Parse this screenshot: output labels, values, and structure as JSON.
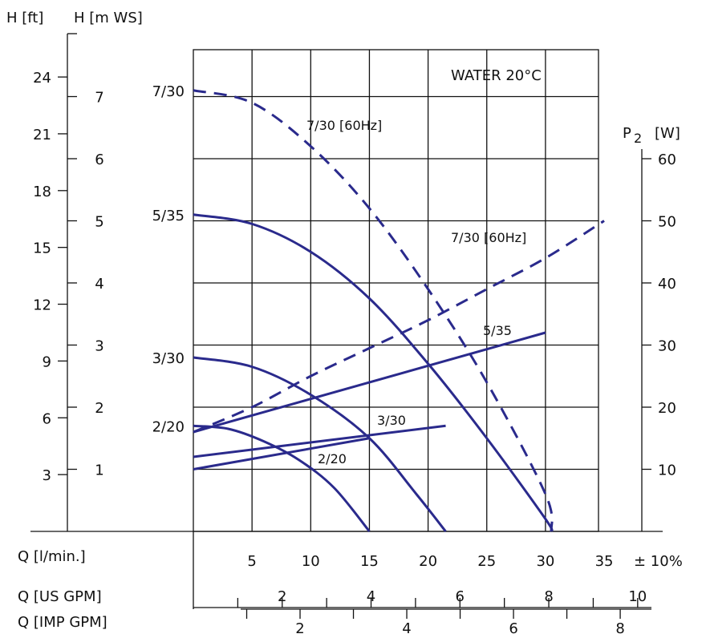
{
  "colors": {
    "curve": "#2a2a8c",
    "grid": "#111111"
  },
  "chart_data": {
    "type": "line",
    "title": "WATER  20°C",
    "axes": {
      "h_ft_label": "H [ft]",
      "h_ft_ticks": [
        "24",
        "21",
        "18",
        "15",
        "12",
        "9",
        "6",
        "3"
      ],
      "h_m_label": "H [m WS]",
      "h_m_ticks": [
        "7",
        "6",
        "5",
        "4",
        "3",
        "2",
        "1"
      ],
      "p2_label": "P",
      "p2_sub": "2",
      "p2_unit": "[W]",
      "p2_ticks": [
        "60",
        "50",
        "40",
        "30",
        "20",
        "10"
      ],
      "q_lmin_label": "Q  [l/min.]",
      "q_lmin_ticks": [
        "5",
        "10",
        "15",
        "20",
        "25",
        "30",
        "35"
      ],
      "tolerance": "± 10%",
      "q_usgpm_label": "Q  [US GPM]",
      "q_usgpm_ticks": [
        "2",
        "4",
        "6",
        "8",
        "10"
      ],
      "q_impgpm_label": "Q  [IMP GPM]",
      "q_impgpm_ticks": [
        "2",
        "4",
        "6",
        "8"
      ],
      "xlim": [
        0,
        35
      ],
      "ylim_m": [
        0,
        7.5
      ],
      "ylim_w": [
        0,
        60
      ]
    },
    "head_labels": [
      "7/30",
      "5/35",
      "3/30",
      "2/20"
    ],
    "series": [
      {
        "name": "7/30 [60Hz]",
        "kind": "head",
        "dashed": true,
        "x": [
          0,
          5,
          10,
          15,
          20,
          25,
          30,
          30.5
        ],
        "y": [
          7.1,
          6.9,
          6.2,
          5.2,
          3.9,
          2.4,
          0.6,
          0
        ]
      },
      {
        "name": "5/35",
        "kind": "head",
        "dashed": false,
        "x": [
          0,
          5,
          10,
          15,
          20,
          25,
          30,
          30.5
        ],
        "y": [
          5.1,
          4.95,
          4.5,
          3.75,
          2.7,
          1.5,
          0.2,
          0
        ]
      },
      {
        "name": "3/30",
        "kind": "head",
        "dashed": false,
        "x": [
          0,
          5,
          10,
          15,
          19,
          21.5
        ],
        "y": [
          2.8,
          2.65,
          2.2,
          1.5,
          0.6,
          0
        ]
      },
      {
        "name": "2/20",
        "kind": "head",
        "dashed": false,
        "x": [
          0,
          3,
          6,
          9,
          12,
          15
        ],
        "y": [
          1.7,
          1.65,
          1.45,
          1.15,
          0.7,
          0
        ]
      },
      {
        "name": "7/30 [60Hz]",
        "kind": "power",
        "dashed": true,
        "x": [
          0,
          5,
          10,
          15,
          20,
          25,
          30,
          35
        ],
        "y": [
          16,
          20,
          25,
          29.5,
          34,
          39,
          44,
          50
        ]
      },
      {
        "name": "5/35",
        "kind": "power",
        "dashed": false,
        "x": [
          0,
          30
        ],
        "y": [
          16,
          32
        ]
      },
      {
        "name": "3/30",
        "kind": "power",
        "dashed": false,
        "x": [
          0,
          21.5
        ],
        "y": [
          12,
          17
        ]
      },
      {
        "name": "2/20",
        "kind": "power",
        "dashed": false,
        "x": [
          0,
          15
        ],
        "y": [
          10,
          15
        ]
      }
    ],
    "grid": true
  }
}
